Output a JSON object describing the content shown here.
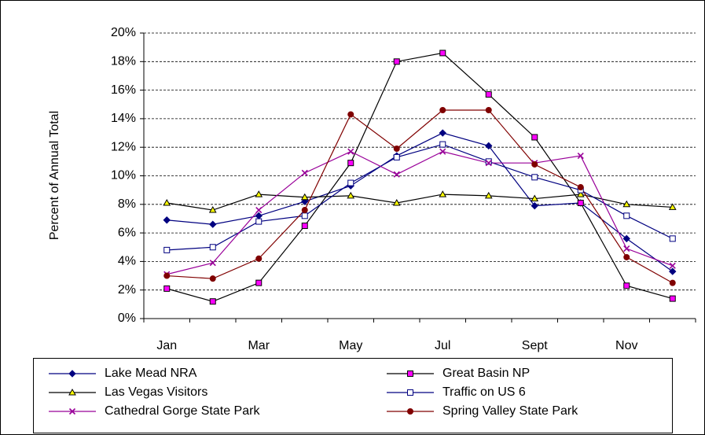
{
  "chart_data": {
    "type": "line",
    "y_label": "Percent of Annual Total",
    "categories": [
      "Jan",
      null,
      "Mar",
      null,
      "May",
      null,
      "Jul",
      null,
      "Sept",
      null,
      "Nov",
      null
    ],
    "ylim": [
      0,
      20
    ],
    "yticks": [
      {
        "value": 0,
        "label": "0%"
      },
      {
        "value": 2,
        "label": "2%"
      },
      {
        "value": 4,
        "label": "4%"
      },
      {
        "value": 6,
        "label": "6%"
      },
      {
        "value": 8,
        "label": "8%"
      },
      {
        "value": 10,
        "label": "10%"
      },
      {
        "value": 12,
        "label": "12%"
      },
      {
        "value": 14,
        "label": "14%"
      },
      {
        "value": 16,
        "label": "16%"
      },
      {
        "value": 18,
        "label": "18%"
      },
      {
        "value": 20,
        "label": "20%"
      }
    ],
    "grid": true,
    "legend": "bottom",
    "series": [
      {
        "name": "Lake Mead NRA",
        "color": "#000080",
        "marker": "diamond",
        "marker_fill": "#000080",
        "values": [
          6.9,
          6.6,
          7.2,
          8.2,
          9.3,
          11.4,
          13.0,
          12.1,
          7.9,
          8.1,
          5.6,
          3.3
        ]
      },
      {
        "name": "Great Basin NP",
        "color": "#000000",
        "marker": "square",
        "marker_fill": "#ff00ff",
        "values": [
          2.1,
          1.2,
          2.5,
          6.5,
          10.9,
          18.0,
          18.6,
          15.7,
          12.7,
          8.1,
          2.3,
          1.4
        ]
      },
      {
        "name": "Las Vegas Visitors",
        "color": "#000000",
        "marker": "triangle",
        "marker_fill": "#ffff00",
        "values": [
          8.1,
          7.6,
          8.7,
          8.5,
          8.6,
          8.1,
          8.7,
          8.6,
          8.4,
          8.7,
          8.0,
          7.8
        ]
      },
      {
        "name": "Traffic on US 6",
        "color": "#000080",
        "marker": "square",
        "marker_fill": "#ffffff",
        "values": [
          4.8,
          5.0,
          6.8,
          7.2,
          9.5,
          11.3,
          12.2,
          11.0,
          9.9,
          9.0,
          7.2,
          5.6
        ]
      },
      {
        "name": "Cathedral Gorge State Park",
        "color": "#990099",
        "marker": "x",
        "marker_fill": "#990099",
        "values": [
          3.1,
          3.9,
          7.6,
          10.2,
          11.7,
          10.1,
          11.7,
          10.9,
          10.9,
          11.4,
          4.9,
          3.7
        ]
      },
      {
        "name": "Spring Valley State Park",
        "color": "#800000",
        "marker": "circle",
        "marker_fill": "#800000",
        "values": [
          3.0,
          2.8,
          4.2,
          7.6,
          14.3,
          11.9,
          14.6,
          14.6,
          10.8,
          9.2,
          4.3,
          2.5
        ]
      }
    ]
  }
}
